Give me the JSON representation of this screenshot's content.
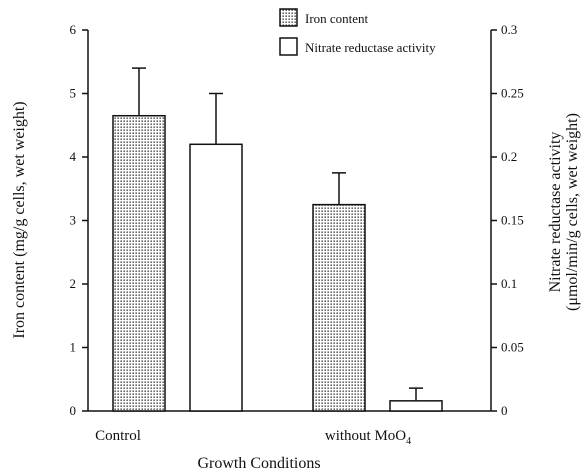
{
  "chart_data": {
    "type": "bar",
    "xlabel": "Growth Conditions",
    "categories": [
      {
        "main": "Control",
        "sub": ""
      },
      {
        "main": "without MoO",
        "sub": "4"
      }
    ],
    "left_axis": {
      "label": "Iron content (mg/g cells, wet weight)",
      "ylim": [
        0,
        6
      ],
      "ticks": [
        0,
        1,
        2,
        3,
        4,
        5,
        6
      ],
      "tick_labels": [
        "0",
        "1",
        "2",
        "3",
        "4",
        "5",
        "6"
      ]
    },
    "right_axis": {
      "label_line1": "Nitrate reductase activity",
      "label_line2": "(μmol/min/g cells, wet weight)",
      "ylim": [
        0,
        0.3
      ],
      "ticks": [
        0,
        0.05,
        0.1,
        0.15,
        0.2,
        0.25,
        0.3
      ],
      "tick_labels": [
        "0",
        "0.05",
        "0.1",
        "0.15",
        "0.2",
        "0.25",
        "0.3"
      ]
    },
    "series": [
      {
        "name": "Iron content",
        "axis": "left",
        "pattern": "dotted",
        "values": [
          4.65,
          3.25
        ],
        "errors": [
          0.75,
          0.5
        ]
      },
      {
        "name": "Nitrate reductase activity",
        "axis": "right",
        "pattern": "white",
        "values": [
          0.21,
          0.008
        ],
        "errors": [
          0.04,
          0.01
        ]
      }
    ],
    "legend_position": "top-right",
    "grid": false
  }
}
